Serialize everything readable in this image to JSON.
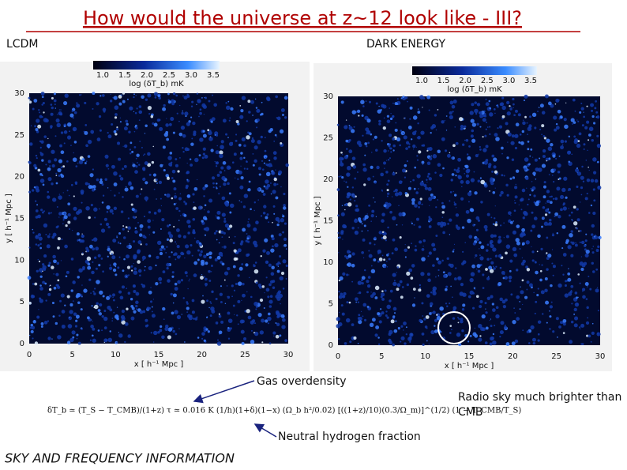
{
  "title": "How would the universe at z~12 look like - III?",
  "panels": [
    {
      "label": "LCDM",
      "colorbar_ticks": [
        "1.0",
        "1.5",
        "2.0",
        "2.5",
        "3.0",
        "3.5"
      ],
      "colorbar_label": "log (δT_b) mK",
      "xticks": [
        "0",
        "5",
        "10",
        "15",
        "20",
        "25",
        "30"
      ],
      "yticks": [
        "0",
        "5",
        "10",
        "15",
        "20",
        "25",
        "30"
      ],
      "xlabel": "x [ h⁻¹ Mpc ]",
      "ylabel": "y [ h⁻¹ Mpc ]"
    },
    {
      "label": "DARK ENERGY",
      "colorbar_ticks": [
        "1.0",
        "1.5",
        "2.0",
        "2.5",
        "3.0",
        "3.5"
      ],
      "colorbar_label": "log (δT_b) mK",
      "xticks": [
        "0",
        "5",
        "10",
        "15",
        "20",
        "25",
        "30"
      ],
      "yticks": [
        "0",
        "5",
        "10",
        "15",
        "20",
        "25",
        "30"
      ],
      "xlabel": "x [ h⁻¹ Mpc ]",
      "ylabel": "y [ h⁻¹ Mpc ]"
    }
  ],
  "formula": "δT_b ≃ (T_S − T_CMB)/(1+z) τ ≃ 0.016 K (1/h)(1+δ)(1−x) (Ω_b h²/0.02) [((1+z)/10)(0.3/Ω_m)]^(1/2) (1 − T_CMB/T_S)",
  "annotations": {
    "gas": "Gas overdensity",
    "neutral": "Neutral hydrogen fraction",
    "radio": "Radio sky much brighter than CMB",
    "footer": "SKY AND FREQUENCY INFORMATION"
  }
}
